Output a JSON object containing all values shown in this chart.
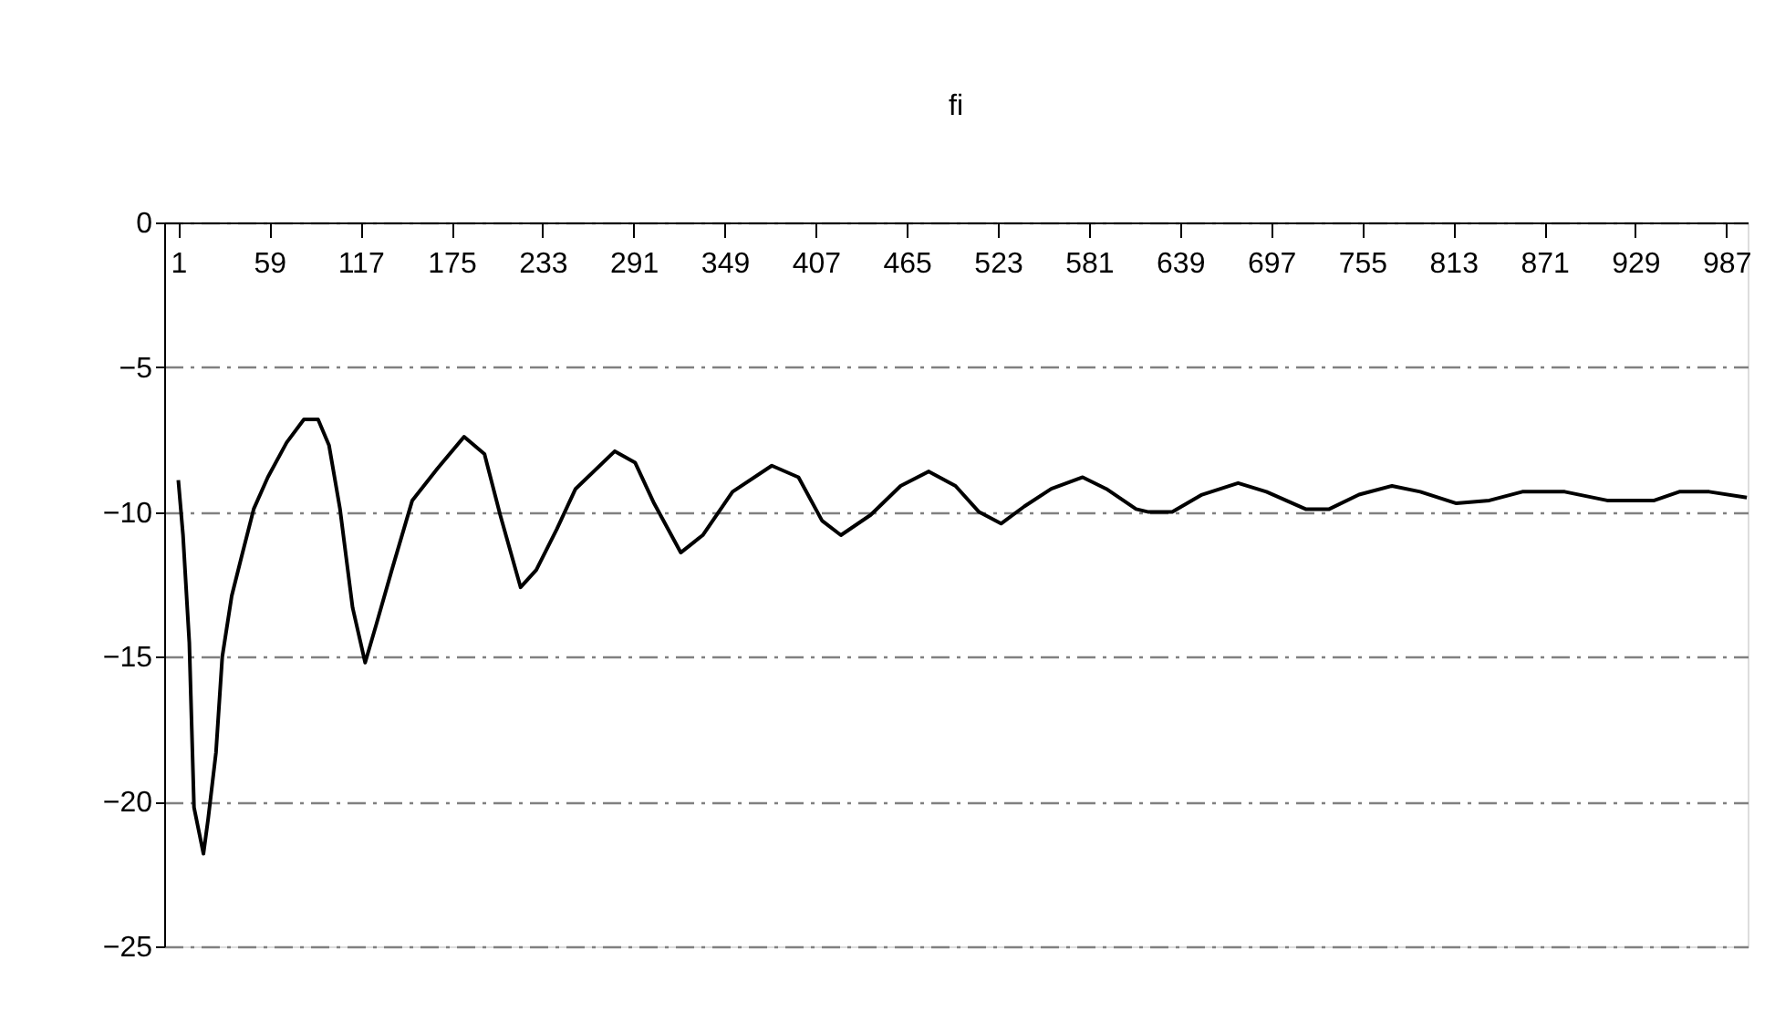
{
  "chart_data": {
    "type": "line",
    "title": "fi",
    "xlim": [
      -8,
      1000.5
    ],
    "xticks": [
      1,
      59,
      117,
      175,
      233,
      291,
      349,
      407,
      465,
      523,
      581,
      639,
      697,
      755,
      813,
      871,
      929,
      987
    ],
    "ylim": [
      -25,
      0
    ],
    "yticks": [
      0,
      -5,
      -10,
      -15,
      -20,
      -25
    ],
    "grid": "y",
    "legend": false,
    "marker": "none",
    "line_style": "solid",
    "series": [
      {
        "color": "#000000",
        "x": [
          1,
          4,
          8,
          11,
          17,
          20,
          25,
          29,
          35,
          41,
          49,
          58,
          70,
          81,
          90,
          97,
          104,
          112,
          120,
          127,
          137,
          150,
          166,
          183,
          196,
          206,
          219,
          229,
          242,
          254,
          279,
          292,
          304,
          321,
          335,
          354,
          379,
          396,
          411,
          423,
          442,
          461,
          479,
          496,
          511,
          525,
          540,
          557,
          577,
          592,
          611,
          619,
          634,
          653,
          676,
          694,
          719,
          734,
          753,
          774,
          792,
          815,
          836,
          857,
          884,
          911,
          941,
          957,
          976,
          1000
        ],
        "values": [
          -8.9,
          -10.8,
          -14.5,
          -20.2,
          -21.8,
          -20.6,
          -18.3,
          -15.0,
          -12.9,
          -11.6,
          -9.9,
          -8.8,
          -7.6,
          -6.8,
          -6.8,
          -7.7,
          -9.9,
          -13.3,
          -15.2,
          -13.9,
          -12.0,
          -9.6,
          -8.5,
          -7.4,
          -8.0,
          -10.1,
          -12.6,
          -12.0,
          -10.6,
          -9.2,
          -7.9,
          -8.3,
          -9.7,
          -11.4,
          -10.8,
          -9.3,
          -8.4,
          -8.8,
          -10.3,
          -10.8,
          -10.1,
          -9.1,
          -8.6,
          -9.1,
          -10.0,
          -10.4,
          -9.8,
          -9.2,
          -8.8,
          -9.2,
          -9.9,
          -10.0,
          -10.0,
          -9.4,
          -9.0,
          -9.3,
          -9.9,
          -9.9,
          -9.4,
          -9.1,
          -9.3,
          -9.7,
          -9.6,
          -9.3,
          -9.3,
          -9.6,
          -9.6,
          -9.3,
          -9.3,
          -9.5
        ]
      }
    ]
  }
}
